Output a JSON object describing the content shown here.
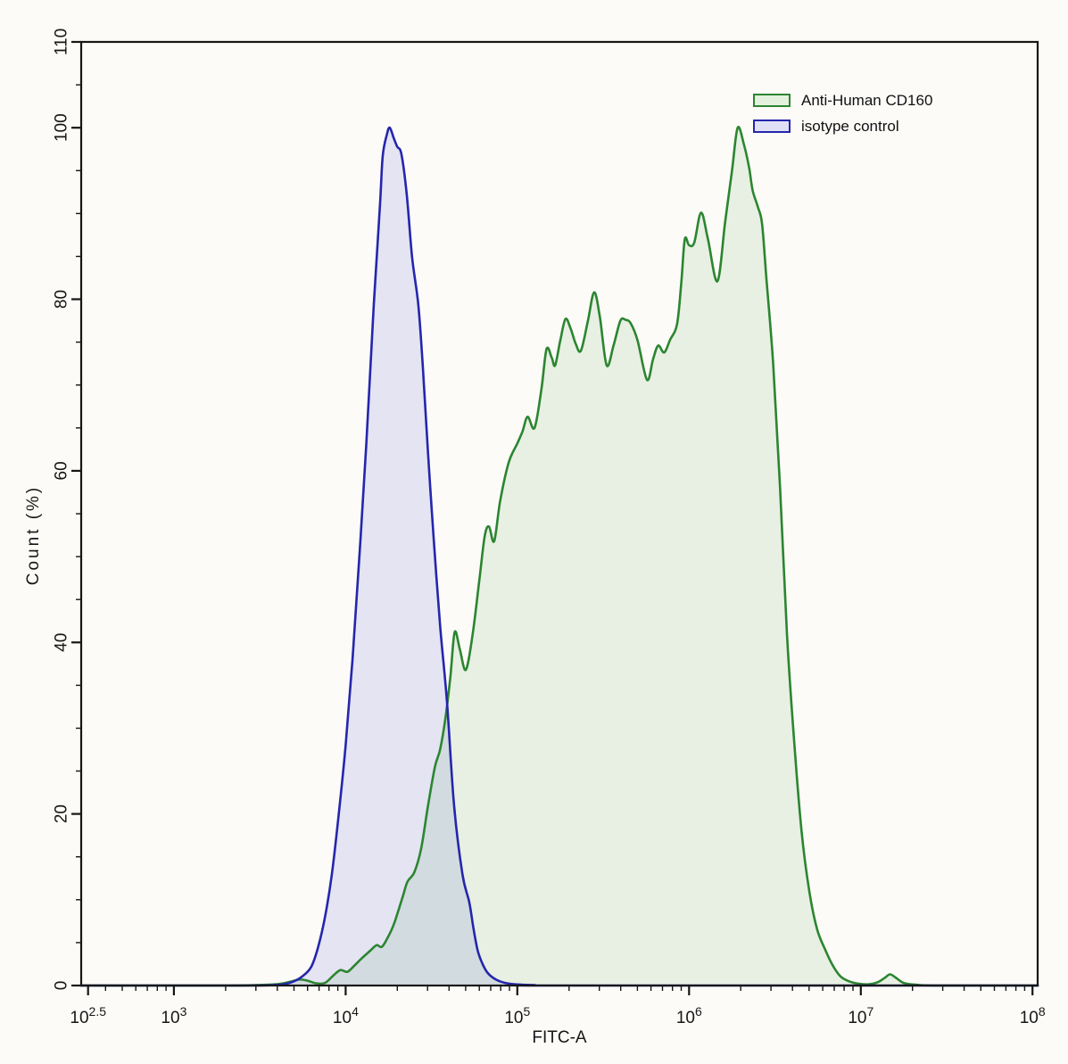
{
  "figure": {
    "background": "#fcfbf8",
    "axis_color": "#161616"
  },
  "axes": {
    "x": {
      "label": "FITC-A",
      "scale": "log10",
      "major_ticks": [
        {
          "log": 2.5,
          "base": "10",
          "exp": "2.5"
        },
        {
          "log": 3,
          "base": "10",
          "exp": "3"
        },
        {
          "log": 4,
          "base": "10",
          "exp": "4"
        },
        {
          "log": 5,
          "base": "10",
          "exp": "5"
        },
        {
          "log": 6,
          "base": "10",
          "exp": "6"
        },
        {
          "log": 7,
          "base": "10",
          "exp": "7"
        },
        {
          "log": 8,
          "base": "10",
          "exp": "8"
        }
      ]
    },
    "y": {
      "label": "Count  (%)",
      "major_ticks": [
        0,
        20,
        40,
        60,
        80,
        100,
        110
      ],
      "minor_step": 5
    }
  },
  "legend": {
    "position": "top-right",
    "items": [
      {
        "label": "Anti-Human CD160",
        "stroke": "#2c8531",
        "fill": "#e3f1dd"
      },
      {
        "label": "isotype control",
        "stroke": "#2526ac",
        "fill": "#dfe0f6"
      }
    ]
  },
  "chart_data": {
    "type": "area",
    "title": "",
    "xlabel": "FITC-A",
    "ylabel": "Count (%)",
    "x_scale": "log10",
    "xlim_log10": [
      2.46,
      8.03
    ],
    "ylim": [
      0,
      110
    ],
    "grid": false,
    "legend_position": "top-right",
    "y_units": "percent of max count",
    "series": [
      {
        "name": "Anti-Human CD160",
        "stroke": "#2c8531",
        "fill": "rgba(90,170,80,0.13)",
        "points_log10x_y": [
          [
            2.46,
            0
          ],
          [
            3.3,
            0
          ],
          [
            3.55,
            0.1
          ],
          [
            3.62,
            0.2
          ],
          [
            3.68,
            0.45
          ],
          [
            3.73,
            0.7
          ],
          [
            3.78,
            0.55
          ],
          [
            3.83,
            0.25
          ],
          [
            3.88,
            0.3
          ],
          [
            3.93,
            1.2
          ],
          [
            3.97,
            1.8
          ],
          [
            4.01,
            1.6
          ],
          [
            4.05,
            2.3
          ],
          [
            4.09,
            3.1
          ],
          [
            4.14,
            4.0
          ],
          [
            4.18,
            4.7
          ],
          [
            4.21,
            4.5
          ],
          [
            4.24,
            5.4
          ],
          [
            4.28,
            7.1
          ],
          [
            4.33,
            10.2
          ],
          [
            4.36,
            12.1
          ],
          [
            4.4,
            13.2
          ],
          [
            4.44,
            16
          ],
          [
            4.48,
            21
          ],
          [
            4.52,
            25.5
          ],
          [
            4.55,
            27.5
          ],
          [
            4.58,
            31
          ],
          [
            4.61,
            36
          ],
          [
            4.635,
            41.2
          ],
          [
            4.665,
            39.2
          ],
          [
            4.7,
            36.8
          ],
          [
            4.74,
            41
          ],
          [
            4.78,
            47.5
          ],
          [
            4.81,
            52.4
          ],
          [
            4.835,
            53.5
          ],
          [
            4.865,
            51.8
          ],
          [
            4.9,
            56.5
          ],
          [
            4.95,
            61
          ],
          [
            5.0,
            63.2
          ],
          [
            5.03,
            64.6
          ],
          [
            5.06,
            66.3
          ],
          [
            5.1,
            65.0
          ],
          [
            5.14,
            69.5
          ],
          [
            5.17,
            74.2
          ],
          [
            5.2,
            73.2
          ],
          [
            5.22,
            72.3
          ],
          [
            5.25,
            75.2
          ],
          [
            5.28,
            77.7
          ],
          [
            5.31,
            76.6
          ],
          [
            5.34,
            74.8
          ],
          [
            5.37,
            74.0
          ],
          [
            5.41,
            77.4
          ],
          [
            5.447,
            80.8
          ],
          [
            5.48,
            78
          ],
          [
            5.52,
            72.3
          ],
          [
            5.56,
            74.6
          ],
          [
            5.6,
            77.5
          ],
          [
            5.63,
            77.6
          ],
          [
            5.66,
            77.2
          ],
          [
            5.7,
            75.2
          ],
          [
            5.755,
            70.6
          ],
          [
            5.79,
            73
          ],
          [
            5.82,
            74.6
          ],
          [
            5.855,
            73.8
          ],
          [
            5.89,
            75.3
          ],
          [
            5.93,
            77.1
          ],
          [
            5.955,
            82
          ],
          [
            5.975,
            87.0
          ],
          [
            6.0,
            86.3
          ],
          [
            6.03,
            86.6
          ],
          [
            6.07,
            90.1
          ],
          [
            6.11,
            87
          ],
          [
            6.165,
            82.1
          ],
          [
            6.21,
            89
          ],
          [
            6.25,
            95
          ],
          [
            6.283,
            100
          ],
          [
            6.32,
            98
          ],
          [
            6.35,
            95.3
          ],
          [
            6.37,
            92.7
          ],
          [
            6.4,
            90.8
          ],
          [
            6.425,
            88.8
          ],
          [
            6.45,
            82.5
          ],
          [
            6.49,
            72.4
          ],
          [
            6.53,
            58
          ],
          [
            6.57,
            41
          ],
          [
            6.61,
            29
          ],
          [
            6.655,
            18
          ],
          [
            6.7,
            11
          ],
          [
            6.745,
            6.6
          ],
          [
            6.79,
            4.3
          ],
          [
            6.835,
            2.4
          ],
          [
            6.88,
            1.1
          ],
          [
            6.93,
            0.5
          ],
          [
            6.99,
            0.2
          ],
          [
            7.05,
            0.15
          ],
          [
            7.1,
            0.4
          ],
          [
            7.14,
            0.9
          ],
          [
            7.17,
            1.3
          ],
          [
            7.205,
            0.9
          ],
          [
            7.25,
            0.3
          ],
          [
            7.32,
            0.1
          ],
          [
            7.45,
            0
          ],
          [
            8.03,
            0
          ]
        ]
      },
      {
        "name": "isotype control",
        "stroke": "#2526ac",
        "fill": "rgba(70,75,210,0.13)",
        "points_log10x_y": [
          [
            2.46,
            0
          ],
          [
            3.4,
            0
          ],
          [
            3.58,
            0.05
          ],
          [
            3.64,
            0.15
          ],
          [
            3.7,
            0.5
          ],
          [
            3.75,
            1.1
          ],
          [
            3.8,
            2.2
          ],
          [
            3.84,
            4.5
          ],
          [
            3.88,
            8
          ],
          [
            3.92,
            13
          ],
          [
            3.96,
            20
          ],
          [
            4.0,
            28
          ],
          [
            4.04,
            38
          ],
          [
            4.08,
            50
          ],
          [
            4.12,
            63
          ],
          [
            4.164,
            79.4
          ],
          [
            4.2,
            91
          ],
          [
            4.216,
            96.7
          ],
          [
            4.24,
            99.2
          ],
          [
            4.257,
            100
          ],
          [
            4.28,
            98.8
          ],
          [
            4.3,
            97.8
          ],
          [
            4.325,
            96.9
          ],
          [
            4.356,
            92.2
          ],
          [
            4.387,
            84.9
          ],
          [
            4.423,
            79.4
          ],
          [
            4.45,
            72
          ],
          [
            4.48,
            62
          ],
          [
            4.512,
            52.3
          ],
          [
            4.55,
            42
          ],
          [
            4.59,
            33.1
          ],
          [
            4.631,
            21.1
          ],
          [
            4.68,
            13
          ],
          [
            4.72,
            9.7
          ],
          [
            4.745,
            6.6
          ],
          [
            4.77,
            4.0
          ],
          [
            4.8,
            2.4
          ],
          [
            4.83,
            1.4
          ],
          [
            4.875,
            0.7
          ],
          [
            4.93,
            0.3
          ],
          [
            5.0,
            0.12
          ],
          [
            5.1,
            0.05
          ],
          [
            5.25,
            0
          ],
          [
            8.03,
            0
          ]
        ]
      }
    ]
  }
}
